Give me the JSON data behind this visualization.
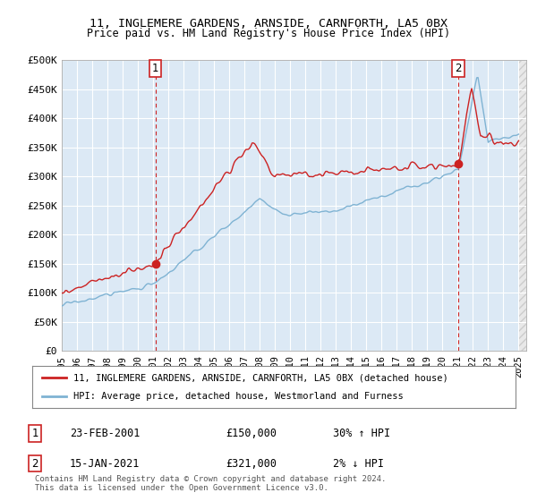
{
  "title": "11, INGLEMERE GARDENS, ARNSIDE, CARNFORTH, LA5 0BX",
  "subtitle": "Price paid vs. HM Land Registry's House Price Index (HPI)",
  "legend_line1": "11, INGLEMERE GARDENS, ARNSIDE, CARNFORTH, LA5 0BX (detached house)",
  "legend_line2": "HPI: Average price, detached house, Westmorland and Furness",
  "annotation1_date": "23-FEB-2001",
  "annotation1_price": "£150,000",
  "annotation1_hpi": "30% ↑ HPI",
  "annotation2_date": "15-JAN-2021",
  "annotation2_price": "£321,000",
  "annotation2_hpi": "2% ↓ HPI",
  "footer": "Contains HM Land Registry data © Crown copyright and database right 2024.\nThis data is licensed under the Open Government Licence v3.0.",
  "sale1_x": 2001.15,
  "sale1_y": 150000,
  "sale2_x": 2021.04,
  "sale2_y": 321000,
  "hpi_color": "#7fb3d3",
  "price_color": "#cc2222",
  "vline_color": "#cc2222",
  "bg_color": "#dce9f5",
  "ylim": [
    0,
    500000
  ],
  "xlim_start": 1995.0,
  "xlim_end": 2025.5,
  "data_end": 2025.0,
  "yticks": [
    0,
    50000,
    100000,
    150000,
    200000,
    250000,
    300000,
    350000,
    400000,
    450000,
    500000
  ],
  "ytick_labels": [
    "£0",
    "£50K",
    "£100K",
    "£150K",
    "£200K",
    "£250K",
    "£300K",
    "£350K",
    "£400K",
    "£450K",
    "£500K"
  ],
  "xticks": [
    1995,
    1996,
    1997,
    1998,
    1999,
    2000,
    2001,
    2002,
    2003,
    2004,
    2005,
    2006,
    2007,
    2008,
    2009,
    2010,
    2011,
    2012,
    2013,
    2014,
    2015,
    2016,
    2017,
    2018,
    2019,
    2020,
    2021,
    2022,
    2023,
    2024,
    2025
  ]
}
